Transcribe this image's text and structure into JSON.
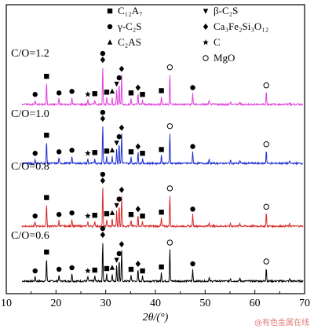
{
  "chart_data": {
    "type": "line",
    "xlabel": "2θ/(°)",
    "ylabel": "",
    "xlim": [
      10,
      70
    ],
    "xticks": [
      10,
      20,
      30,
      40,
      50,
      60,
      70
    ],
    "grid": false,
    "legend_position": "top-right",
    "legend": [
      {
        "label": "C₁₂A₇",
        "marker": "square"
      },
      {
        "label": "β-C₂S",
        "marker": "triangle-down"
      },
      {
        "label": "γ-C₂S",
        "marker": "circle-filled"
      },
      {
        "label": "Ca₃Fe₂Si₃O₁₂",
        "marker": "diamond"
      },
      {
        "label": "C₂AS",
        "marker": "triangle-up"
      },
      {
        "label": "C",
        "marker": "star"
      },
      {
        "label": "MgO",
        "marker": "circle-open"
      }
    ],
    "peaks": [
      {
        "x": 15.8,
        "h": 6,
        "phase": "circle-filled"
      },
      {
        "x": 18.1,
        "h": 30,
        "phase": "square"
      },
      {
        "x": 20.6,
        "h": 8,
        "phase": "circle-filled"
      },
      {
        "x": 23.2,
        "h": 10,
        "phase": "circle-filled"
      },
      {
        "x": 26.4,
        "h": 6,
        "phase": "star"
      },
      {
        "x": 27.8,
        "h": 7,
        "phase": "square"
      },
      {
        "x": 29.4,
        "h": 52,
        "phase": "diamond"
      },
      {
        "x": 29.4,
        "h": 0,
        "phase": "circle-filled"
      },
      {
        "x": 30.2,
        "h": 9,
        "phase": "square"
      },
      {
        "x": 31.3,
        "h": 10,
        "phase": "triangle-up"
      },
      {
        "x": 32.2,
        "h": 20,
        "phase": "triangle-down"
      },
      {
        "x": 32.7,
        "h": 28,
        "phase": "circle-filled"
      },
      {
        "x": 33.2,
        "h": 40,
        "phase": "diamond"
      },
      {
        "x": 35.1,
        "h": 8,
        "phase": "square"
      },
      {
        "x": 36.5,
        "h": 15,
        "phase": "diamond"
      },
      {
        "x": 37.4,
        "h": 6,
        "phase": "square"
      },
      {
        "x": 41.2,
        "h": 11,
        "phase": "square"
      },
      {
        "x": 42.9,
        "h": 42,
        "phase": "circle-open"
      },
      {
        "x": 47.5,
        "h": 15,
        "phase": "circle-filled"
      },
      {
        "x": 50.8,
        "h": 5,
        "phase": "none"
      },
      {
        "x": 55.1,
        "h": 4,
        "phase": "none"
      },
      {
        "x": 57.0,
        "h": 4,
        "phase": "none"
      },
      {
        "x": 62.3,
        "h": 18,
        "phase": "circle-open"
      },
      {
        "x": 67.0,
        "h": 3,
        "phase": "none"
      }
    ],
    "series": [
      {
        "name": "C/O=0.6",
        "color": "#000000"
      },
      {
        "name": "C/O=0.8",
        "color": "#d62a2a"
      },
      {
        "name": "C/O=1.0",
        "color": "#1f2fd0"
      },
      {
        "name": "C/O=1.2",
        "color": "#e040d8"
      }
    ]
  },
  "watermark": "@有色金属在线"
}
